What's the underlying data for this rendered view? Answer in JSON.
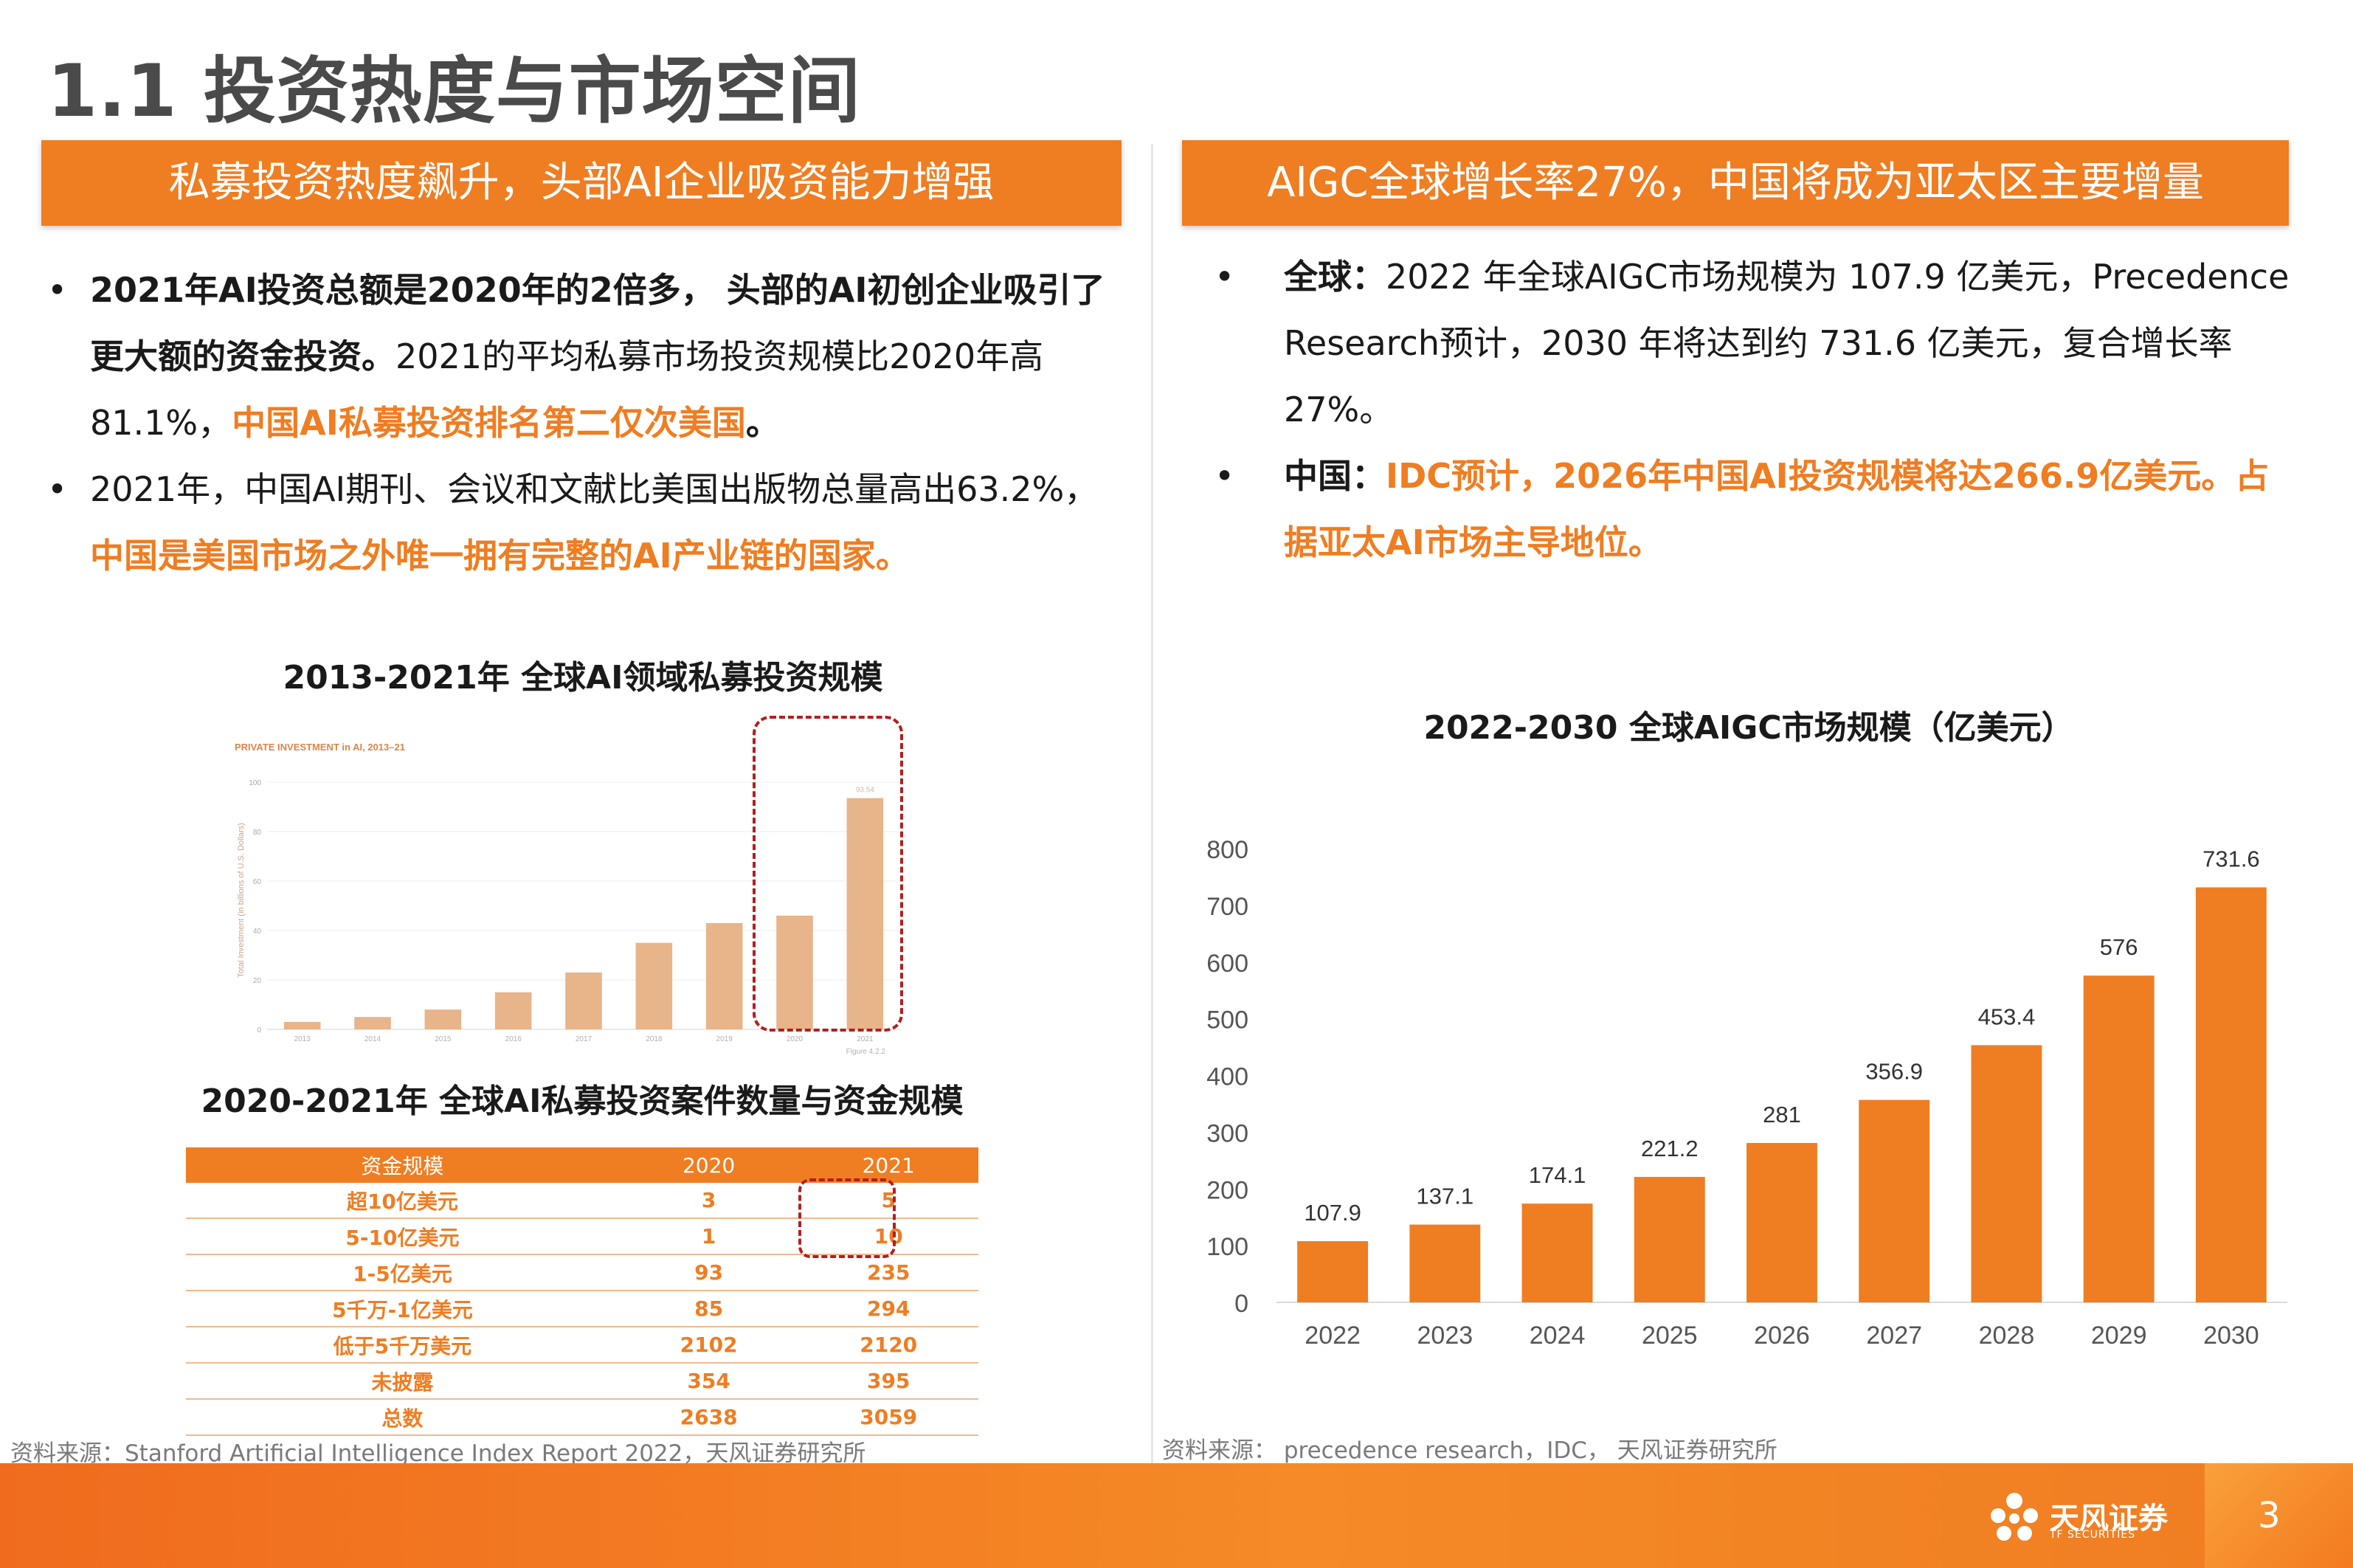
{
  "page_title": "1.1 投资热度与市场空间",
  "left": {
    "banner": "私募投资热度飙升，头部AI企业吸资能力增强",
    "bullet1": {
      "bold": "2021年AI投资总额是2020年的2倍多， 头部的AI初创企业吸引了更大额的资金投资。",
      "normal": "2021的平均私募市场投资规模比2020年高81.1%，",
      "orange": "中国AI私募投资排名第二仅次美国",
      "end": "。"
    },
    "bullet2": {
      "normal": "2021年，中国AI期刊、会议和文献比美国出版物总量高出63.2%，",
      "orange": "中国是美国市场之外唯一拥有完整的AI产业链的国家。"
    },
    "chart1_title": "2013-2021年 全球AI领域私募投资规模",
    "chart1_inner_title": "PRIVATE INVESTMENT in AI, 2013–21",
    "chart1_ylabel": "Total Investment (in billions of U.S. Dollars)",
    "chart1_figure": "Figure 4.2.2",
    "chart1_value_label": "93.54",
    "table_title": "2020-2021年 全球AI私募投资案件数量与资金规模",
    "table": {
      "headers": [
        "资金规模",
        "2020",
        "2021"
      ],
      "rows": [
        [
          "超10亿美元",
          "3",
          "5"
        ],
        [
          "5-10亿美元",
          "1",
          "10"
        ],
        [
          "1-5亿美元",
          "93",
          "235"
        ],
        [
          "5千万-1亿美元",
          "85",
          "294"
        ],
        [
          "低于5千万美元",
          "2102",
          "2120"
        ],
        [
          "未披露",
          "354",
          "395"
        ],
        [
          "总数",
          "2638",
          "3059"
        ]
      ]
    },
    "source": "资料来源：Stanford Artificial Intelligence Index Report 2022，天风证券研究所"
  },
  "right": {
    "banner": "AIGC全球增长率27%，中国将成为亚太区主要增量",
    "bullet1": {
      "bold": "全球：",
      "normal": "2022 年全球AIGC市场规模为 107.9 亿美元，Precedence Research预计，2030 年将达到约 731.6 亿美元，复合增长率27%。"
    },
    "bullet2": {
      "bold": "中国：",
      "orange": "IDC预计，2026年中国AI投资规模将达266.9亿美元。占据亚太AI市场主导地位。"
    },
    "chart2_title": "2022-2030 全球AIGC市场规模（亿美元）",
    "source": "资料来源： precedence research，IDC， 天风证券研究所"
  },
  "chart_data": [
    {
      "type": "bar",
      "title": "2013-2021年 全球AI领域私募投资规模",
      "categories": [
        "2013",
        "2014",
        "2015",
        "2016",
        "2017",
        "2018",
        "2019",
        "2020",
        "2021"
      ],
      "values": [
        3,
        5,
        8,
        15,
        23,
        35,
        43,
        46,
        93.54
      ],
      "ylim": [
        0,
        100
      ],
      "yticks": [
        0,
        20,
        40,
        60,
        80,
        100
      ],
      "bar_color": "#e8b48a"
    },
    {
      "type": "bar",
      "title": "2022-2030 全球AIGC市场规模（亿美元）",
      "categories": [
        "2022",
        "2023",
        "2024",
        "2025",
        "2026",
        "2027",
        "2028",
        "2029",
        "2030"
      ],
      "values": [
        107.9,
        137.1,
        174.1,
        221.2,
        281,
        356.9,
        453.4,
        576,
        731.6
      ],
      "ylim": [
        0,
        800
      ],
      "yticks": [
        0,
        100,
        200,
        300,
        400,
        500,
        600,
        700,
        800
      ],
      "bar_color": "#ef7d22"
    }
  ],
  "footer": {
    "logo_text": "天风证券",
    "logo_sub": "TF SECURITIES",
    "page_number": "3"
  },
  "colors": {
    "accent": "#ef7d22",
    "highlight_box": "#b21f1f"
  }
}
